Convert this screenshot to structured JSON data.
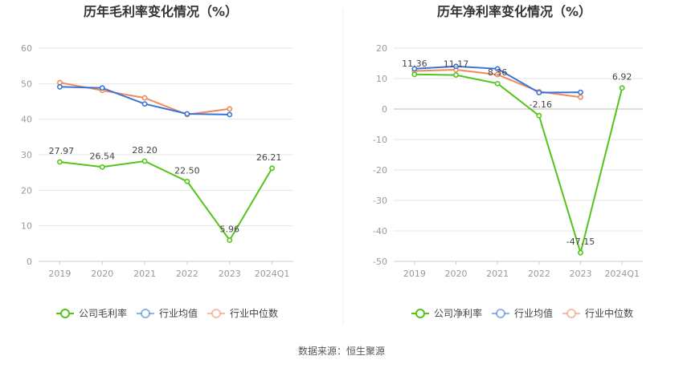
{
  "source": "数据来源：恒生聚源",
  "chart_data": [
    {
      "type": "line",
      "title": "历年毛利率变化情况（%）",
      "categories": [
        "2019",
        "2020",
        "2021",
        "2022",
        "2023",
        "2024Q1"
      ],
      "ylim": [
        0,
        60
      ],
      "yticks": [
        0,
        10,
        20,
        30,
        40,
        50,
        60
      ],
      "grid": true,
      "legend": "bottom",
      "series": [
        {
          "name": "公司毛利率",
          "color": "#52c41a",
          "values": [
            27.97,
            26.54,
            28.2,
            22.5,
            5.96,
            26.21
          ],
          "labels": [
            "27.97",
            "26.54",
            "28.20",
            "22.50",
            "5.96",
            "26.21"
          ]
        },
        {
          "name": "行业均值",
          "color": "#3a73d6",
          "values": [
            49.1,
            48.8,
            44.3,
            41.5,
            41.3,
            null
          ]
        },
        {
          "name": "行业中位数",
          "color": "#f08a5d",
          "values": [
            50.3,
            48.1,
            46.0,
            41.3,
            42.9,
            null
          ]
        }
      ]
    },
    {
      "type": "line",
      "title": "历年净利率变化情况（%）",
      "categories": [
        "2019",
        "2020",
        "2021",
        "2022",
        "2023",
        "2024Q1"
      ],
      "ylim": [
        -50,
        20
      ],
      "yticks": [
        -50,
        -40,
        -30,
        -20,
        -10,
        0,
        10,
        20
      ],
      "grid": true,
      "legend": "bottom",
      "series": [
        {
          "name": "公司净利率",
          "color": "#52c41a",
          "values": [
            11.36,
            11.17,
            8.36,
            -2.16,
            -47.15,
            6.92
          ],
          "labels": [
            "11.36",
            "11.17",
            "8.36",
            "-2.16",
            "-47.15",
            "6.92"
          ]
        },
        {
          "name": "行业均值",
          "color": "#3a73d6",
          "values": [
            13.2,
            14.0,
            13.2,
            5.4,
            5.5,
            null
          ]
        },
        {
          "name": "行业中位数",
          "color": "#f08a5d",
          "values": [
            12.5,
            12.9,
            11.3,
            5.7,
            3.9,
            null
          ]
        }
      ]
    }
  ]
}
